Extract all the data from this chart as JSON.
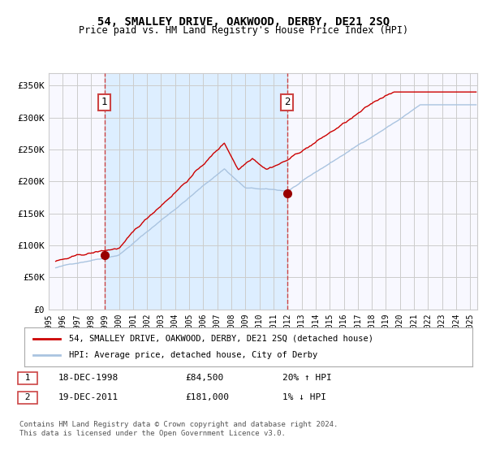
{
  "title": "54, SMALLEY DRIVE, OAKWOOD, DERBY, DE21 2SQ",
  "subtitle": "Price paid vs. HM Land Registry's House Price Index (HPI)",
  "ylim": [
    0,
    370000
  ],
  "yticks": [
    0,
    50000,
    100000,
    150000,
    200000,
    250000,
    300000,
    350000
  ],
  "ytick_labels": [
    "£0",
    "£50K",
    "£100K",
    "£150K",
    "£200K",
    "£250K",
    "£300K",
    "£350K"
  ],
  "sale1_date": 1998.96,
  "sale1_price": 84500,
  "sale1_label": "1",
  "sale2_date": 2011.96,
  "sale2_price": 181000,
  "sale2_label": "2",
  "hpi_line_color": "#aac4e0",
  "price_line_color": "#cc0000",
  "sale_dot_color": "#990000",
  "shading_color": "#ddeeff",
  "vline_color": "#cc4444",
  "grid_color": "#cccccc",
  "bg_color": "#ffffff",
  "plot_bg_color": "#f8f8ff",
  "legend1_label": "54, SMALLEY DRIVE, OAKWOOD, DERBY, DE21 2SQ (detached house)",
  "legend2_label": "HPI: Average price, detached house, City of Derby",
  "table_row1": [
    "1",
    "18-DEC-1998",
    "£84,500",
    "20% ↑ HPI"
  ],
  "table_row2": [
    "2",
    "19-DEC-2011",
    "£181,000",
    "1% ↓ HPI"
  ],
  "footnote": "Contains HM Land Registry data © Crown copyright and database right 2024.\nThis data is licensed under the Open Government Licence v3.0.",
  "xstart": 1995.5,
  "xend": 2025.5
}
